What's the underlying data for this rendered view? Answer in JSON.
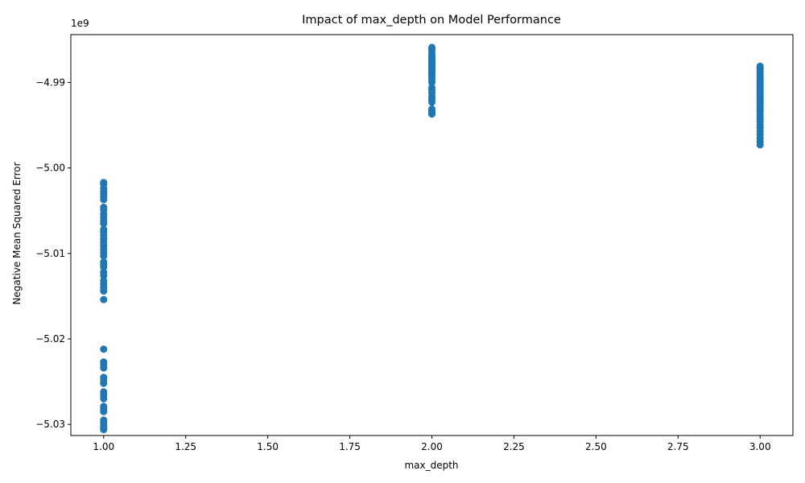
{
  "chart_data": {
    "type": "scatter",
    "title": "Impact of max_depth on Model Performance",
    "xlabel": "max_depth",
    "ylabel": "Negative Mean Squared Error",
    "y_offset_label": "1e9",
    "xlim": [
      0.9,
      3.1
    ],
    "ylim": [
      -5.0313,
      -4.9844
    ],
    "x_ticks": [
      1.0,
      1.25,
      1.5,
      1.75,
      2.0,
      2.25,
      2.5,
      2.75,
      3.0
    ],
    "x_tick_labels": [
      "1.00",
      "1.25",
      "1.50",
      "1.75",
      "2.00",
      "2.25",
      "2.50",
      "2.75",
      "3.00"
    ],
    "y_ticks": [
      -5.03,
      -5.02,
      -5.01,
      -5.0,
      -4.99
    ],
    "y_tick_labels": [
      "−5.03",
      "−5.02",
      "−5.01",
      "−5.00",
      "−4.99"
    ],
    "grid": false,
    "marker_color": "#1f77b4",
    "series": [
      {
        "x": [
          1,
          1,
          1,
          1,
          1,
          1,
          1,
          1,
          1,
          1,
          1,
          1,
          1,
          1,
          1,
          1,
          1,
          1,
          1,
          1,
          1,
          1,
          1,
          1,
          1,
          1,
          1,
          1,
          1,
          1,
          1,
          1,
          1,
          1,
          1,
          1,
          1,
          1,
          1,
          1,
          1,
          1,
          1,
          1,
          1,
          1,
          1,
          1,
          1,
          1,
          1
        ],
        "y": [
          -5.0017,
          -5.0019,
          -5.0024,
          -5.0027,
          -5.003,
          -5.0033,
          -5.0037,
          -5.0046,
          -5.0049,
          -5.0054,
          -5.0058,
          -5.0062,
          -5.0065,
          -5.0072,
          -5.0075,
          -5.0079,
          -5.0083,
          -5.0087,
          -5.0091,
          -5.0095,
          -5.0099,
          -5.0103,
          -5.011,
          -5.0113,
          -5.0116,
          -5.0122,
          -5.0126,
          -5.0132,
          -5.0136,
          -5.014,
          -5.0144,
          -5.0154,
          -5.0212,
          -5.0227,
          -5.023,
          -5.0234,
          -5.0245,
          -5.0248,
          -5.0252,
          -5.0262,
          -5.0266,
          -5.027,
          -5.0279,
          -5.0282,
          -5.0285,
          -5.0295,
          -5.0298,
          -5.0301,
          -5.0303,
          -5.0304,
          -5.0306
        ]
      },
      {
        "x": [
          2,
          2,
          2,
          2,
          2,
          2,
          2,
          2,
          2,
          2,
          2,
          2,
          2,
          2,
          2,
          2,
          2,
          2,
          2,
          2,
          2,
          2,
          2,
          2,
          2,
          2,
          2,
          2,
          2,
          2,
          2,
          2,
          2,
          2
        ],
        "y": [
          -4.9859,
          -4.9861,
          -4.9864,
          -4.9867,
          -4.9869,
          -4.9871,
          -4.9873,
          -4.9875,
          -4.9877,
          -4.9878,
          -4.988,
          -4.9882,
          -4.9884,
          -4.9885,
          -4.9887,
          -4.9889,
          -4.9891,
          -4.9893,
          -4.9895,
          -4.9898,
          -4.99,
          -4.9906,
          -4.9909,
          -4.9912,
          -4.9916,
          -4.9919,
          -4.9921,
          -4.9923,
          -4.9931,
          -4.9933,
          -4.9934,
          -4.9935,
          -4.9936,
          -4.9937
        ]
      },
      {
        "x": [
          3,
          3,
          3,
          3,
          3,
          3,
          3,
          3,
          3,
          3,
          3,
          3,
          3,
          3,
          3,
          3,
          3,
          3,
          3,
          3,
          3,
          3,
          3,
          3,
          3,
          3,
          3,
          3,
          3,
          3,
          3,
          3,
          3,
          3,
          3,
          3
        ],
        "y": [
          -4.9881,
          -4.9883,
          -4.9885,
          -4.9888,
          -4.9891,
          -4.9894,
          -4.9897,
          -4.9899,
          -4.9901,
          -4.9903,
          -4.9905,
          -4.9907,
          -4.9909,
          -4.9911,
          -4.9913,
          -4.9915,
          -4.9917,
          -4.9919,
          -4.9921,
          -4.9923,
          -4.9925,
          -4.9927,
          -4.993,
          -4.9932,
          -4.9934,
          -4.9937,
          -4.994,
          -4.9943,
          -4.9946,
          -4.995,
          -4.9953,
          -4.9957,
          -4.9961,
          -4.9965,
          -4.9969,
          -4.9973
        ]
      }
    ]
  }
}
